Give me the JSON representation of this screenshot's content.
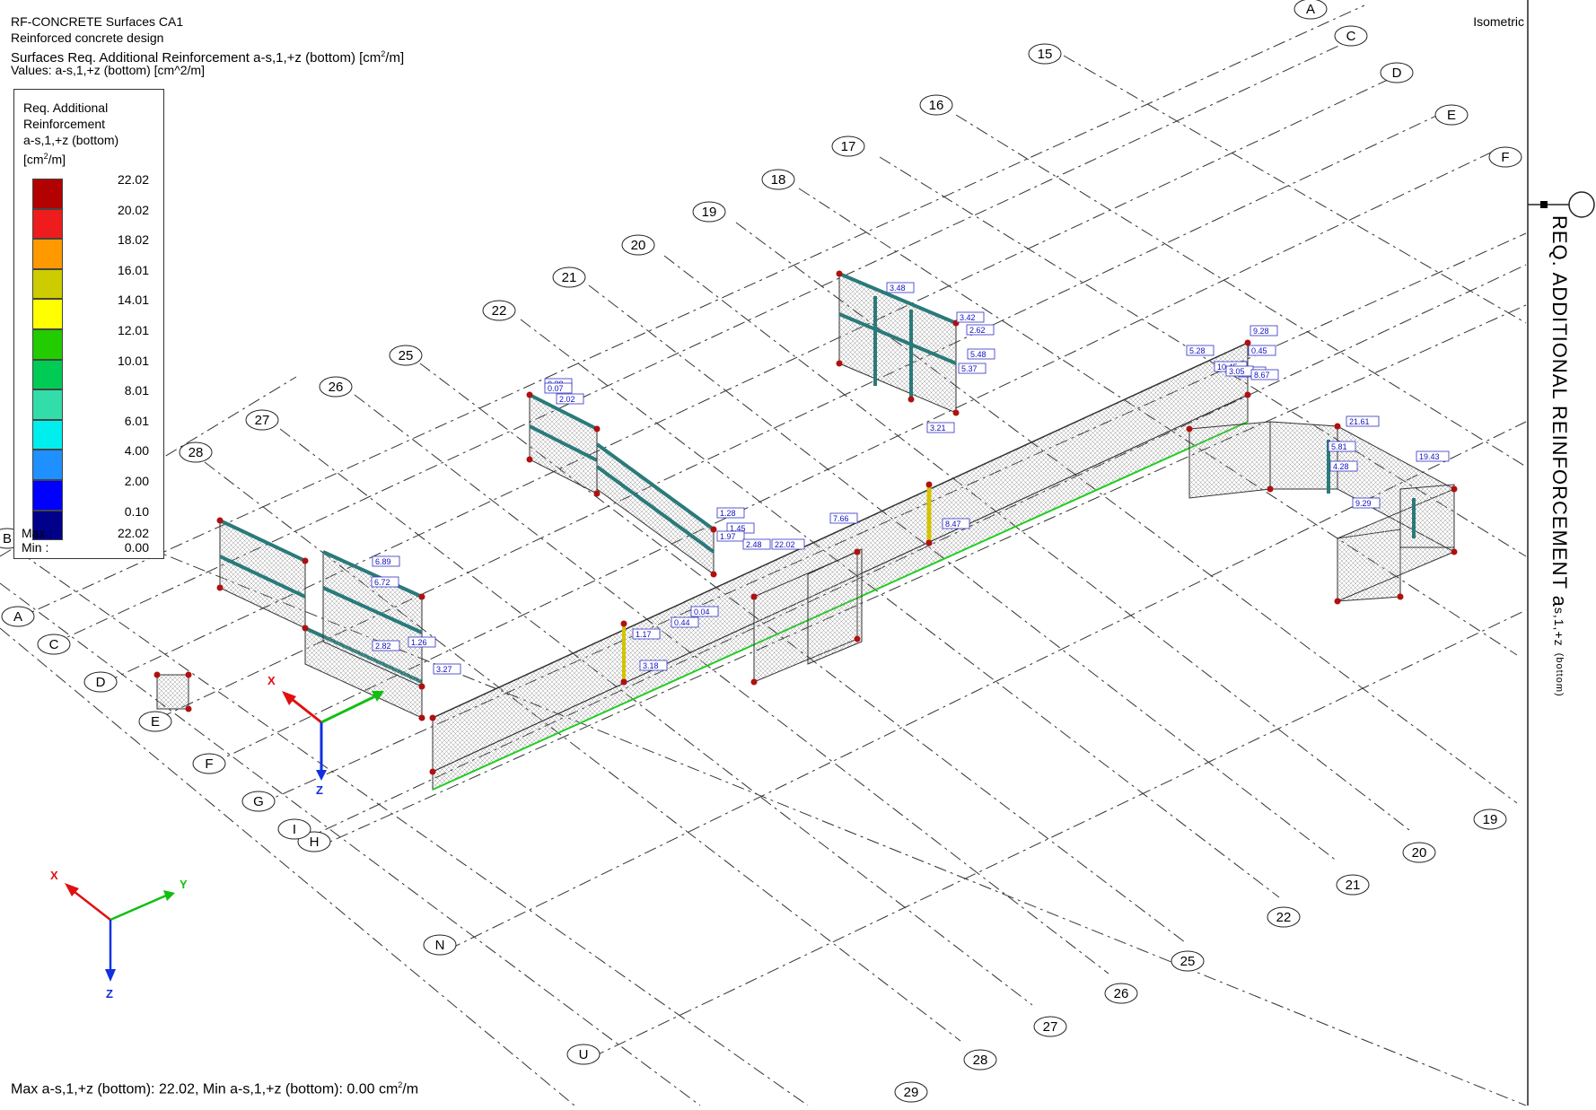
{
  "header": {
    "module": "RF-CONCRETE Surfaces CA1",
    "design": "Reinforced concrete design",
    "result_prefix": "Surfaces Req. Additional Reinforcement a-s,1,+z (bottom) [cm",
    "result_suffix": "/m]",
    "values": "Values: a-s,1,+z (bottom) [cm^2/m]"
  },
  "view_name": "Isometric",
  "legend": {
    "title_lines": [
      "Req. Additional",
      "Reinforcement",
      "a-s,1,+z (bottom)"
    ],
    "unit_prefix": "[cm",
    "unit_suffix": "/m]",
    "levels": [
      "22.02",
      "20.02",
      "18.02",
      "16.01",
      "14.01",
      "12.01",
      "10.01",
      "8.01",
      "6.01",
      "4.00",
      "2.00",
      "0.10"
    ],
    "colors": [
      "#b30000",
      "#ee1c1c",
      "#ff9900",
      "#cccc00",
      "#ffff00",
      "#22cc00",
      "#00cc55",
      "#33ddaa",
      "#00eeee",
      "#1e90ff",
      "#0000ff",
      "#00008b"
    ],
    "max_label": "Max :",
    "max_value": "22.02",
    "min_label": "Min :",
    "min_value": "0.00"
  },
  "side_title": {
    "main": "REQ. ADDITIONAL REINFORCEMENT a",
    "sub": "s,1,+z",
    "paren": "(bottom)"
  },
  "footer": {
    "prefix": "Max a-s,1,+z (bottom): 22.02, Min a-s,1,+z (bottom): 0.00 cm",
    "suffix": "/m"
  },
  "grid_labels_letters": [
    "A",
    "C",
    "D",
    "E",
    "F",
    "G",
    "H",
    "I",
    "N",
    "U",
    "A",
    "C",
    "D",
    "E",
    "F",
    "B"
  ],
  "grid_labels_numbers_top": [
    "15",
    "16",
    "17",
    "18",
    "19",
    "20",
    "21",
    "22",
    "25",
    "26",
    "27",
    "28"
  ],
  "grid_labels_numbers_bottom": [
    "19",
    "20",
    "21",
    "22",
    "25",
    "26",
    "27",
    "28",
    "29"
  ],
  "result_values": [
    "3.48",
    "3.42",
    "2.62",
    "5.48",
    "5.37",
    "0.38",
    "0.07",
    "2.02",
    "9.28",
    "5.28",
    "0.86",
    "0.45",
    "10.45",
    "3.05",
    "8.67",
    "3.21",
    "4.28",
    "5.81",
    "21.61",
    "19.43",
    "9.29",
    "1.28",
    "1.45",
    "1.97",
    "7.66",
    "22.02",
    "2.48",
    "8.47",
    "0.04",
    "0.44",
    "1.17",
    "3.18",
    "6.72",
    "6.89",
    "1.26",
    "3.27",
    "2.82"
  ],
  "axes": {
    "x": "X",
    "y": "Y",
    "z": "Z"
  }
}
